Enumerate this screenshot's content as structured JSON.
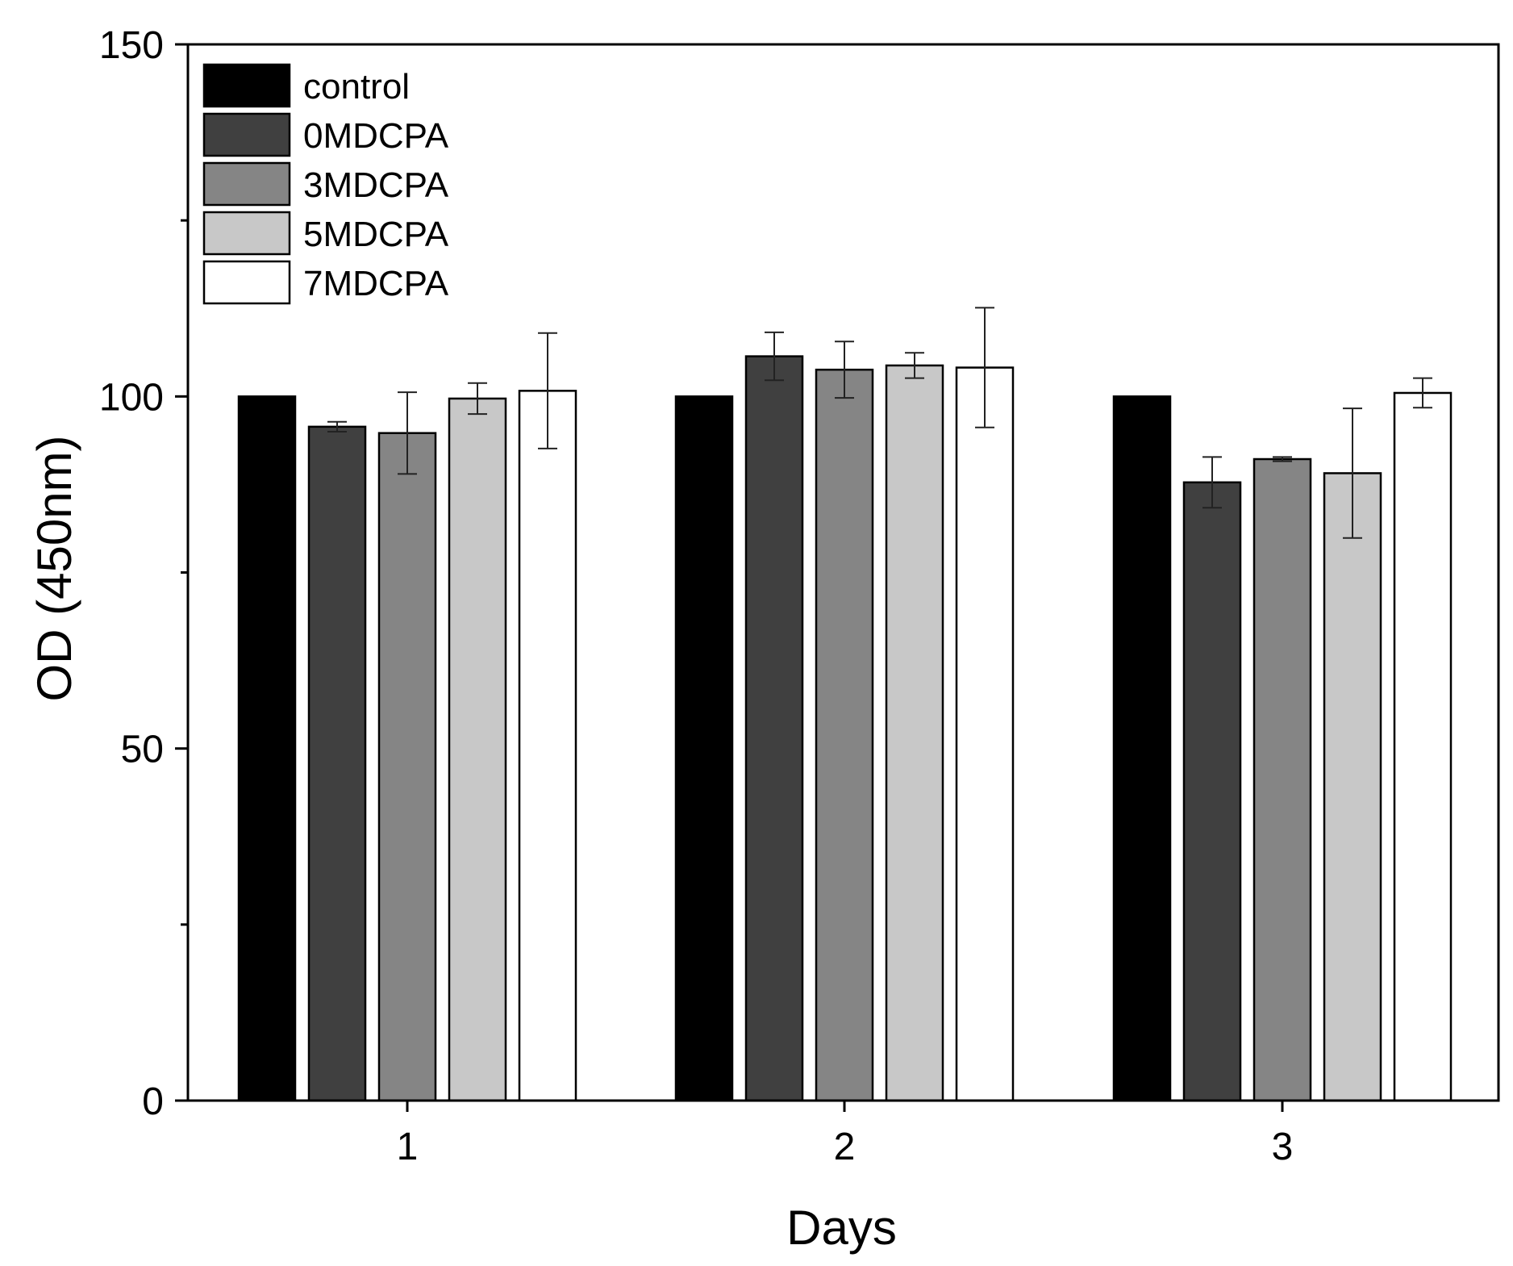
{
  "chart_data": {
    "type": "bar",
    "title": "",
    "xlabel": "Days",
    "ylabel": "OD (450nm)",
    "ylim": [
      0,
      150
    ],
    "yticks": [
      0,
      50,
      100,
      150
    ],
    "categories": [
      "1",
      "2",
      "3"
    ],
    "grid": false,
    "legend_position": "top-left",
    "series": [
      {
        "name": "control",
        "color": "#000000",
        "values": [
          100,
          100,
          100
        ],
        "errors": [
          0,
          0,
          0
        ]
      },
      {
        "name": "0MDCPA",
        "color": "#404040",
        "values": [
          95.7,
          105.7,
          87.8
        ],
        "errors": [
          0.7,
          3.4,
          3.6
        ]
      },
      {
        "name": "3MDCPA",
        "color": "#858585",
        "values": [
          94.8,
          103.8,
          91.1
        ],
        "errors": [
          5.8,
          4.0,
          0.3
        ]
      },
      {
        "name": "5MDCPA",
        "color": "#c8c8c8",
        "values": [
          99.7,
          104.4,
          89.1
        ],
        "errors": [
          2.2,
          1.8,
          9.2
        ]
      },
      {
        "name": "7MDCPA",
        "color": "#ffffff",
        "values": [
          100.8,
          104.1,
          100.5
        ],
        "errors": [
          8.2,
          8.5,
          2.1
        ]
      }
    ]
  }
}
